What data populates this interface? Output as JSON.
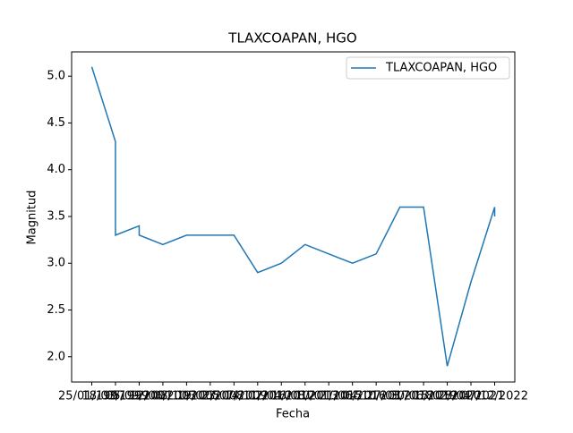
{
  "chart_data": {
    "type": "line",
    "title": "TLAXCOAPAN, HGO",
    "xlabel": "Fecha",
    "ylabel": "Magnitud",
    "categories": [
      "25/01/1997",
      "18/03/1999",
      "05/09/2001",
      "12/06/2003",
      "08/10/2005",
      "19/02/2008",
      "23/07/2009",
      "14/11/2010",
      "02/04/2012",
      "16/08/2013",
      "10/01/2015",
      "21/06/2016",
      "04/10/2017",
      "27/03/2018",
      "30/06/2019",
      "15/02/2020",
      "28/04/2021",
      "07/12/2022"
    ],
    "x": [
      "25/01/1997",
      "18/03/1999",
      "18/03/1999",
      "05/09/2001",
      "05/09/2001",
      "12/06/2003",
      "08/10/2005",
      "19/02/2008",
      "23/07/2009",
      "14/11/2010",
      "02/04/2012",
      "16/08/2013",
      "10/01/2015",
      "21/06/2016",
      "04/10/2017",
      "27/03/2018",
      "30/06/2019",
      "15/02/2020",
      "28/04/2021",
      "07/12/2022",
      "07/12/2022"
    ],
    "series": [
      {
        "name": "TLAXCOAPAN, HGO",
        "color": "#1f77b4",
        "values": [
          5.1,
          4.3,
          3.3,
          3.4,
          3.3,
          3.2,
          3.3,
          3.3,
          3.3,
          2.9,
          3.0,
          3.2,
          3.1,
          3.0,
          3.1,
          3.6,
          3.6,
          1.9,
          2.8,
          3.6,
          3.5
        ]
      }
    ],
    "ylim": [
      1.73,
      5.26
    ],
    "yticks": [
      {
        "value": 2,
        "label": "2.0"
      },
      2.5,
      {
        "value": 3,
        "label": "3.0"
      },
      3.5,
      {
        "value": 4,
        "label": "4.0"
      },
      4.5,
      {
        "value": 5,
        "label": "5.0"
      }
    ],
    "legend": "upper right"
  }
}
